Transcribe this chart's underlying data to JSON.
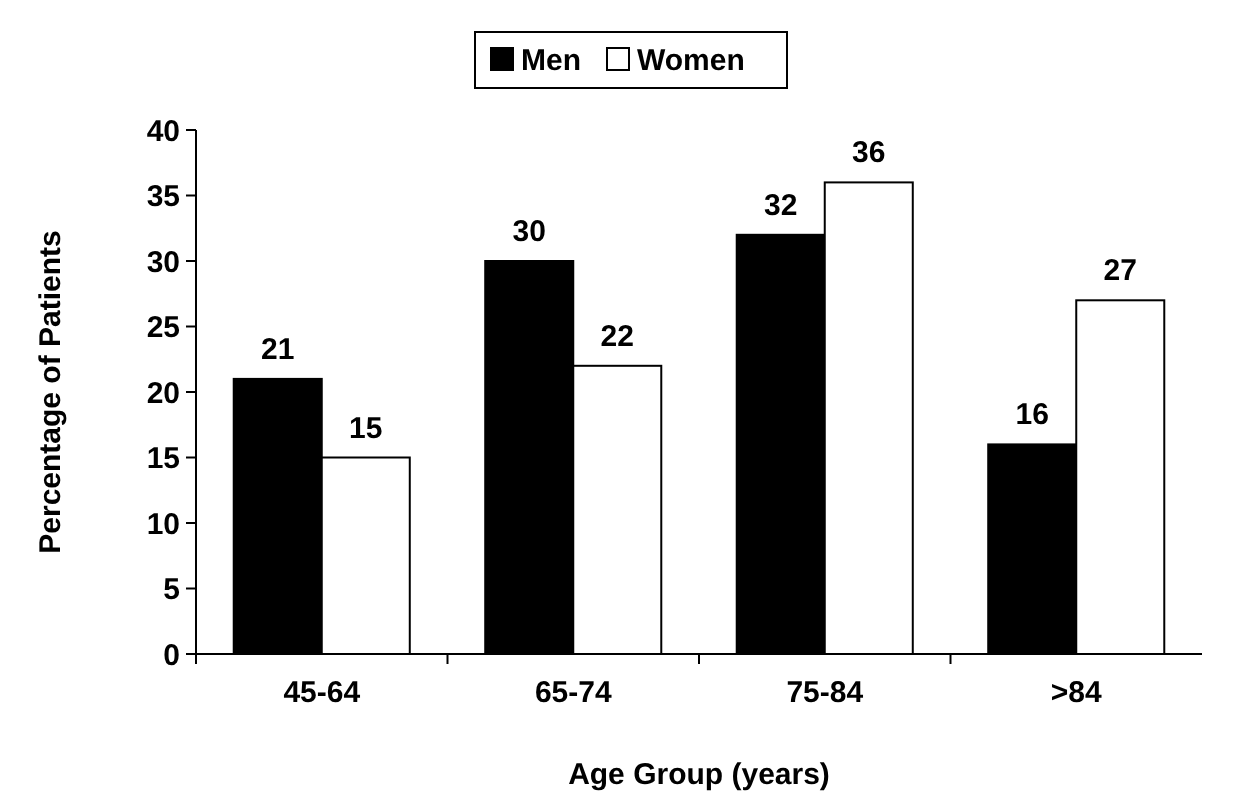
{
  "chart_data": {
    "type": "bar",
    "xlabel": "Age Group (years)",
    "ylabel": "Percentage of Patients",
    "categories": [
      "45-64",
      "65-74",
      "75-84",
      ">84"
    ],
    "series": [
      {
        "name": "Men",
        "color": "#000000",
        "values": [
          21,
          30,
          32,
          16
        ]
      },
      {
        "name": "Women",
        "color": "#ffffff",
        "values": [
          15,
          22,
          36,
          27
        ]
      }
    ],
    "ylim": [
      0,
      40
    ],
    "yticks": [
      0,
      5,
      10,
      15,
      20,
      25,
      30,
      35,
      40
    ],
    "grid": false,
    "legend": "top",
    "data_labels": true
  }
}
